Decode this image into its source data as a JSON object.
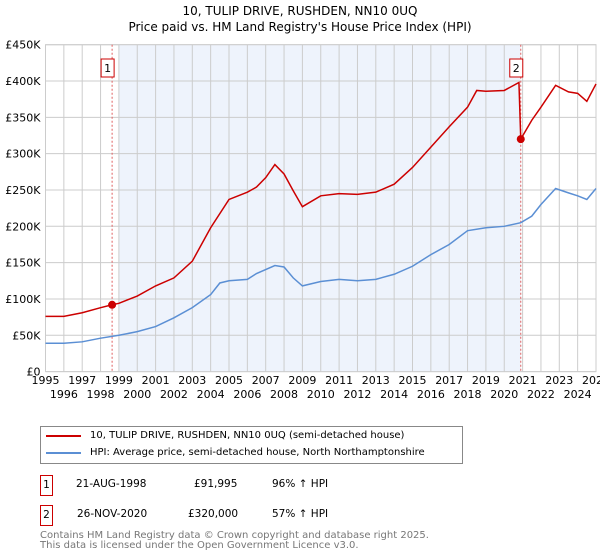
{
  "chart_data": {
    "type": "line",
    "title": "10, TULIP DRIVE, RUSHDEN, NN10 0UQ",
    "subtitle": "Price paid vs. HM Land Registry's House Price Index (HPI)",
    "xlim": [
      1995,
      2025
    ],
    "ylim": [
      0,
      450000
    ],
    "x_ticks": [
      "1995",
      "1996",
      "1997",
      "1998",
      "1999",
      "2000",
      "2001",
      "2002",
      "2003",
      "2004",
      "2005",
      "2006",
      "2007",
      "2008",
      "2009",
      "2010",
      "2011",
      "2012",
      "2013",
      "2014",
      "2015",
      "2016",
      "2017",
      "2018",
      "2019",
      "2020",
      "2021",
      "2022",
      "2023",
      "2024",
      "2025"
    ],
    "y_ticks": [
      {
        "v": 0,
        "l": "£0"
      },
      {
        "v": 50000,
        "l": "£50K"
      },
      {
        "v": 100000,
        "l": "£100K"
      },
      {
        "v": 150000,
        "l": "£150K"
      },
      {
        "v": 200000,
        "l": "£200K"
      },
      {
        "v": 250000,
        "l": "£250K"
      },
      {
        "v": 300000,
        "l": "£300K"
      },
      {
        "v": 350000,
        "l": "£350K"
      },
      {
        "v": 400000,
        "l": "£400K"
      },
      {
        "v": 450000,
        "l": "£450K"
      }
    ],
    "grid": true,
    "shaded_period": [
      1999.0,
      2020.9
    ],
    "series": [
      {
        "name": "10, TULIP DRIVE, RUSHDEN, NN10 0UQ (semi-detached house)",
        "color": "#cc0000",
        "x": [
          1995,
          1996,
          1997,
          1998,
          1998.63,
          1999,
          2000,
          2001,
          2002,
          2003,
          2004,
          2005,
          2006,
          2006.5,
          2007,
          2007.5,
          2008,
          2008.5,
          2009,
          2010,
          2011,
          2012,
          2013,
          2014,
          2015,
          2016,
          2017,
          2018,
          2018.5,
          2019,
          2020,
          2020.8,
          2020.9,
          2021.5,
          2022,
          2022.8,
          2023.5,
          2024,
          2024.5,
          2025
        ],
        "y": [
          76000,
          76000,
          81000,
          88000,
          91995,
          94000,
          104000,
          118000,
          129000,
          152000,
          198000,
          237000,
          247000,
          254000,
          267000,
          285000,
          272000,
          249000,
          227000,
          242000,
          245000,
          244000,
          247000,
          258000,
          281000,
          309000,
          337000,
          364000,
          387000,
          386000,
          387000,
          398000,
          320000,
          346000,
          364000,
          394000,
          385000,
          383000,
          372000,
          396000
        ]
      },
      {
        "name": "HPI: Average price, semi-detached house, North Northamptonshire",
        "color": "#5b8fd4",
        "x": [
          1995,
          1996,
          1997,
          1998,
          1999,
          2000,
          2001,
          2002,
          2003,
          2004,
          2004.5,
          2005,
          2006,
          2006.5,
          2007.5,
          2008,
          2008.5,
          2009,
          2010,
          2011,
          2012,
          2013,
          2014,
          2015,
          2016,
          2017,
          2018,
          2019,
          2020,
          2020.9,
          2021.5,
          2022,
          2022.8,
          2023.5,
          2024,
          2024.5,
          2025
        ],
        "y": [
          39000,
          39000,
          41000,
          46000,
          50000,
          55000,
          62000,
          74000,
          88000,
          106000,
          122000,
          125000,
          127000,
          135000,
          146000,
          144000,
          129000,
          118000,
          124000,
          127000,
          125000,
          127000,
          134000,
          145000,
          161000,
          175000,
          194000,
          198000,
          200000,
          205000,
          214000,
          230000,
          252000,
          246000,
          242000,
          237000,
          252000
        ]
      }
    ],
    "annotations": [
      {
        "label": "1",
        "x": 1998.63,
        "y": 91995
      },
      {
        "label": "2",
        "x": 2020.9,
        "y": 320000
      }
    ]
  },
  "legend": {
    "items": [
      "10, TULIP DRIVE, RUSHDEN, NN10 0UQ (semi-detached house)",
      "HPI: Average price, semi-detached house, North Northamptonshire"
    ]
  },
  "transactions": [
    {
      "n": "1",
      "date": "21-AUG-1998",
      "price": "£91,995",
      "hpi": "96% ↑ HPI"
    },
    {
      "n": "2",
      "date": "26-NOV-2020",
      "price": "£320,000",
      "hpi": "57% ↑ HPI"
    }
  ],
  "footer": {
    "line1": "Contains HM Land Registry data © Crown copyright and database right 2025.",
    "line2": "This data is licensed under the Open Government Licence v3.0."
  }
}
